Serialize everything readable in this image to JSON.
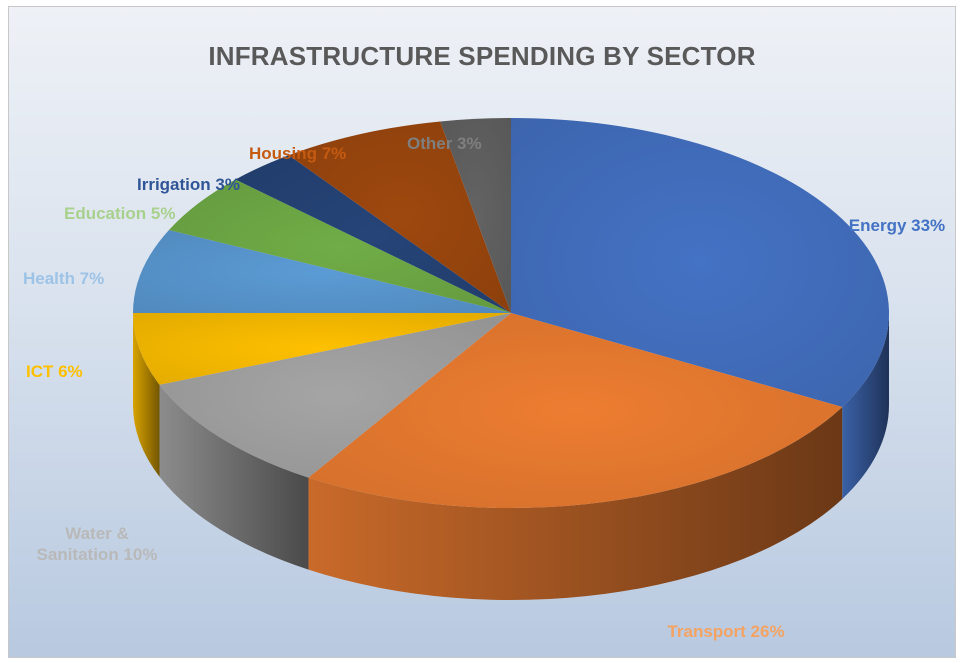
{
  "chart_data": {
    "type": "pie",
    "title": "INFRASTRUCTURE SPENDING BY SECTOR",
    "slices": [
      {
        "label": "Energy 33%",
        "name": "Energy",
        "value": 33,
        "color": "#4472c4"
      },
      {
        "label": "Transport 26%",
        "name": "Transport",
        "value": 26,
        "color": "#ed7d31"
      },
      {
        "label": "Water & Sanitation 10%",
        "label_lines": [
          "Water &",
          "Sanitation 10%"
        ],
        "name": "Water & Sanitation",
        "value": 10,
        "color": "#a5a5a5"
      },
      {
        "label": "ICT 6%",
        "name": "ICT",
        "value": 6,
        "color": "#ffc000"
      },
      {
        "label": "Health 7%",
        "name": "Health",
        "value": 7,
        "color": "#5b9bd5"
      },
      {
        "label": "Education 5%",
        "name": "Education",
        "value": 5,
        "color": "#70ad47"
      },
      {
        "label": "Irrigation  3%",
        "name": "Irrigation",
        "value": 3,
        "color": "#264478"
      },
      {
        "label": "Housing 7%",
        "name": "Housing",
        "value": 7,
        "color": "#9e480e"
      },
      {
        "label": "Other 3%",
        "name": "Other",
        "value": 3,
        "color": "#636363"
      }
    ],
    "legend": "none",
    "style": "3d-pie"
  }
}
